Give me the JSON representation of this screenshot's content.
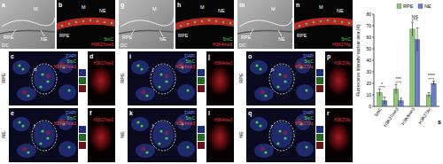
{
  "groups": [
    {
      "dic": {
        "label": "a",
        "caption": "DIC",
        "texts": [
          "M",
          "RPE",
          "NE"
        ]
      },
      "fluor": {
        "label": "b",
        "texts": [
          "M",
          "RPE",
          "NE"
        ],
        "channels": [
          "5mC",
          "H3K27me3"
        ]
      },
      "rows": [
        {
          "name": "RPE",
          "merge": {
            "label": "c",
            "zoom": "d",
            "channels": [
              "DAPI",
              "5mC",
              "H3K27me3"
            ]
          },
          "single": {
            "label": "d",
            "channel": "H3K27me3"
          }
        },
        {
          "name": "NE",
          "merge": {
            "label": "e",
            "zoom": "f",
            "channels": [
              "DAPI",
              "5mC",
              "H3K27me3"
            ]
          },
          "single": {
            "label": "f",
            "channel": "H3K27me3"
          }
        }
      ]
    },
    {
      "dic": {
        "label": "g",
        "caption": "DIC",
        "texts": [
          "M",
          "RPE",
          "NE"
        ]
      },
      "fluor": {
        "label": "h",
        "texts": [
          "M",
          "RPE",
          "NE"
        ],
        "channels": [
          "5mC",
          "H3K4me3"
        ]
      },
      "rows": [
        {
          "name": "RPE",
          "merge": {
            "label": "i",
            "zoom": "j",
            "channels": [
              "DAPI",
              "5mC",
              "H3K4me3"
            ]
          },
          "single": {
            "label": "j",
            "channel": "H3K4me3"
          }
        },
        {
          "name": "NE",
          "merge": {
            "label": "k",
            "zoom": "l",
            "channels": [
              "DAPI",
              "5mC",
              "H3K4me3"
            ]
          },
          "single": {
            "label": "l",
            "channel": "H3K4me3"
          }
        }
      ]
    },
    {
      "dic": {
        "label": "m",
        "caption": "DIC",
        "texts": [
          "M",
          "RPE",
          "NE"
        ]
      },
      "fluor": {
        "label": "n",
        "texts": [
          "M",
          "RPE",
          "NE"
        ],
        "channels": [
          "5mC",
          "H3K27Ac"
        ]
      },
      "rows": [
        {
          "name": "RPE",
          "merge": {
            "label": "o",
            "zoom": "p",
            "channels": [
              "DAPI",
              "5mC",
              "H3K27Ac"
            ]
          },
          "single": {
            "label": "p",
            "channel": "H3K27Ac"
          }
        },
        {
          "name": "NE",
          "merge": {
            "label": "q",
            "zoom": "r",
            "channels": [
              "DAPI",
              "5mC",
              "H3K27Ac"
            ]
          },
          "single": {
            "label": "r",
            "channel": "H3K27Ac"
          }
        }
      ]
    }
  ],
  "chart_data": {
    "type": "bar",
    "title": "s",
    "y_label": "Fluorescence Intensity/ nuclear area (%)",
    "categories": [
      "5mC",
      "H3K27me3",
      "H3K4me3",
      "H3K27Ac"
    ],
    "series": [
      {
        "name": "RPE",
        "color": "#8cc870",
        "values": [
          12,
          15,
          67,
          10
        ],
        "errors": [
          3,
          4,
          6,
          2
        ]
      },
      {
        "name": "NE",
        "color": "#6a7cc8",
        "values": [
          5,
          5,
          58,
          20
        ],
        "errors": [
          3,
          2,
          10,
          2
        ]
      }
    ],
    "annotations": [
      "*",
      "***",
      "NS",
      "****"
    ],
    "ylim": [
      0,
      80
    ],
    "yticks": [
      0,
      10,
      20,
      30,
      40,
      50,
      60,
      70,
      80
    ],
    "legend": "top"
  }
}
